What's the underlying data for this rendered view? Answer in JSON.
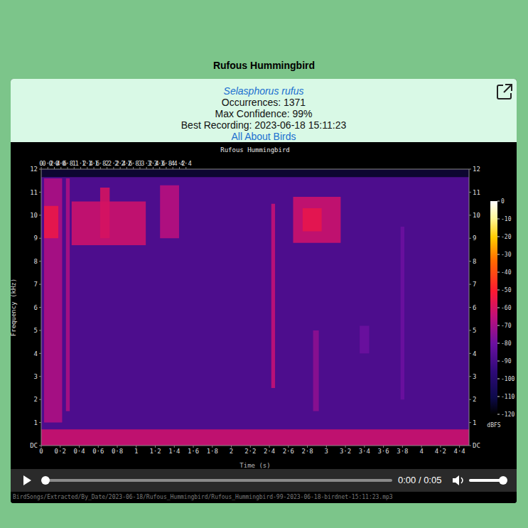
{
  "page": {
    "title": "Rufous Hummingbird",
    "header": {
      "scientific_name": "Selasphorus rufus",
      "occurrences": "Occurrences: 1371",
      "max_confidence": "Max Confidence: 99%",
      "best_recording": "Best Recording: 2023-06-18 15:11:23",
      "link": "All About Birds"
    },
    "player": {
      "time": "0:00 / 0:05"
    },
    "file_path": "BirdSongs/Extracted/By_Date/2023-06-18/Rufous_Hummingbird/Rufous_Hummingbird-99-2023-06-18-birdnet-15:11:23.mp3"
  },
  "chart_data": {
    "type": "heatmap",
    "title": "Rufous Hummingbird",
    "x_label": "Time (s)",
    "y_label": "Frequency (kHz)",
    "xlim": [
      0,
      4.5
    ],
    "xticks": [
      0,
      {
        "value": 0.2,
        "label": "0·2"
      },
      {
        "value": 0.4,
        "label": "0·4"
      },
      {
        "value": 0.6,
        "label": "0·6"
      },
      {
        "value": 0.8,
        "label": "0·8"
      },
      1,
      {
        "value": 1.2,
        "label": "1·2"
      },
      {
        "value": 1.4,
        "label": "1·4"
      },
      {
        "value": 1.6,
        "label": "1·6"
      },
      {
        "value": 1.8,
        "label": "1·8"
      },
      2,
      {
        "value": 2.2,
        "label": "2·2"
      },
      {
        "value": 2.4,
        "label": "2·4"
      },
      {
        "value": 2.6,
        "label": "2·6"
      },
      {
        "value": 2.8,
        "label": "2·8"
      },
      3,
      {
        "value": 3.2,
        "label": "3·2"
      },
      {
        "value": 3.4,
        "label": "3·4"
      },
      {
        "value": 3.6,
        "label": "3·6"
      },
      {
        "value": 3.8,
        "label": "3·8"
      },
      4,
      {
        "value": 4.2,
        "label": "4·2"
      },
      {
        "value": 4.4,
        "label": "4·4"
      }
    ],
    "ylim": [
      0,
      12
    ],
    "yticks": [
      {
        "value": 0,
        "label": "DC"
      },
      1,
      2,
      3,
      4,
      5,
      6,
      7,
      8,
      9,
      10,
      11,
      12
    ],
    "background_dbfs": -88,
    "regions": [
      {
        "t0": 0,
        "t1": 4.5,
        "f0": 11.65,
        "f1": 12,
        "dbfs": -115
      },
      {
        "t0": 0,
        "t1": 4.5,
        "f0": 0,
        "f1": 0.7,
        "dbfs": -62
      },
      {
        "t0": 0.03,
        "t1": 0.22,
        "f0": 1,
        "f1": 11.6,
        "dbfs": -68
      },
      {
        "t0": 0.03,
        "t1": 0.18,
        "f0": 9,
        "f1": 10.4,
        "dbfs": -55
      },
      {
        "t0": 0.26,
        "t1": 0.3,
        "f0": 1.5,
        "f1": 11.6,
        "dbfs": -68
      },
      {
        "t0": 0.32,
        "t1": 1.1,
        "f0": 8.7,
        "f1": 10.6,
        "dbfs": -62
      },
      {
        "t0": 0.62,
        "t1": 0.72,
        "f0": 9,
        "f1": 11.2,
        "dbfs": -60
      },
      {
        "t0": 1.25,
        "t1": 1.45,
        "f0": 9,
        "f1": 11.3,
        "dbfs": -66
      },
      {
        "t0": 2.42,
        "t1": 2.46,
        "f0": 2.5,
        "f1": 10.5,
        "dbfs": -64
      },
      {
        "t0": 2.65,
        "t1": 3.15,
        "f0": 8.8,
        "f1": 10.8,
        "dbfs": -62
      },
      {
        "t0": 2.75,
        "t1": 2.95,
        "f0": 9.3,
        "f1": 10.3,
        "dbfs": -56
      },
      {
        "t0": 2.86,
        "t1": 2.92,
        "f0": 1.5,
        "f1": 5,
        "dbfs": -74
      },
      {
        "t0": 3.35,
        "t1": 3.45,
        "f0": 4,
        "f1": 5.2,
        "dbfs": -80
      },
      {
        "t0": 3.78,
        "t1": 3.82,
        "f0": 2,
        "f1": 9.5,
        "dbfs": -80
      }
    ],
    "colorbar": {
      "range": [
        -120,
        0
      ],
      "ticks": [
        0,
        -10,
        -20,
        -30,
        -40,
        -50,
        -60,
        -70,
        -80,
        -90,
        -100,
        -110,
        -120
      ],
      "label": "dBFS"
    }
  }
}
